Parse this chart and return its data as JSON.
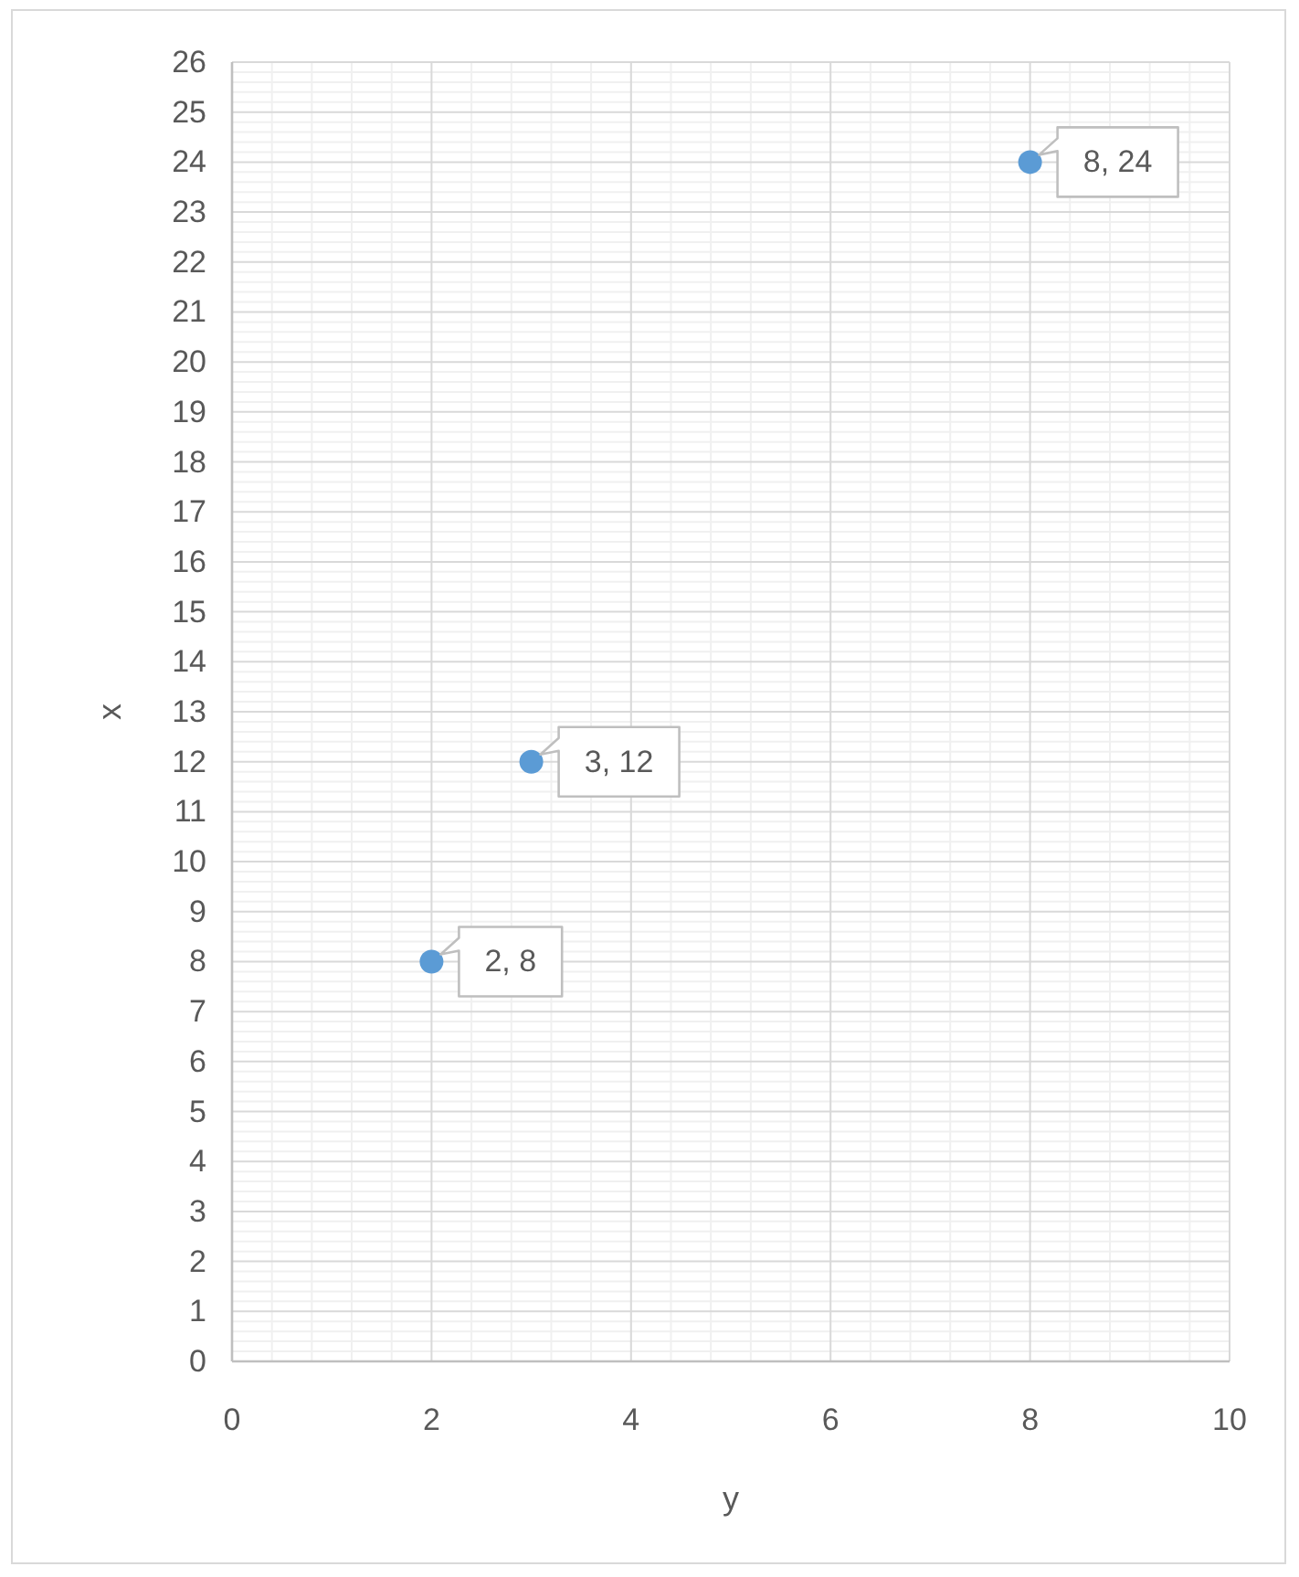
{
  "chart_data": {
    "type": "scatter",
    "xlabel": "y",
    "ylabel": "x",
    "x": [
      2,
      3,
      8
    ],
    "values": [
      8,
      12,
      24
    ],
    "color": "#5b9bd5",
    "marker": "circle",
    "value_labels": [
      "2, 8",
      "3, 12",
      "8, 24"
    ],
    "xlim": [
      0,
      10
    ],
    "ylim": [
      0,
      26
    ],
    "grid": true,
    "xticks": [
      0,
      {
        "value": 0.4,
        "label": null
      },
      {
        "value": 0.8,
        "label": null
      },
      {
        "value": 1.2,
        "label": null
      },
      {
        "value": 1.6,
        "label": null
      },
      2,
      {
        "value": 2.4,
        "label": null
      },
      {
        "value": 2.8,
        "label": null
      },
      {
        "value": 3.2,
        "label": null
      },
      {
        "value": 3.6,
        "label": null
      },
      4,
      {
        "value": 4.4,
        "label": null
      },
      {
        "value": 4.8,
        "label": null
      },
      {
        "value": 5.2,
        "label": null
      },
      {
        "value": 5.6,
        "label": null
      },
      6,
      {
        "value": 6.4,
        "label": null
      },
      {
        "value": 6.8,
        "label": null
      },
      {
        "value": 7.2,
        "label": null
      },
      {
        "value": 7.6,
        "label": null
      },
      8,
      {
        "value": 8.4,
        "label": null
      },
      {
        "value": 8.8,
        "label": null
      },
      {
        "value": 9.2,
        "label": null
      },
      {
        "value": 9.6,
        "label": null
      },
      10
    ],
    "yticks": [
      0,
      {
        "value": 0.2,
        "label": null
      },
      {
        "value": 0.4,
        "label": null
      },
      {
        "value": 0.6,
        "label": null
      },
      {
        "value": 0.8,
        "label": null
      },
      1,
      {
        "value": 1.2,
        "label": null
      },
      {
        "value": 1.4,
        "label": null
      },
      {
        "value": 1.6,
        "label": null
      },
      {
        "value": 1.8,
        "label": null
      },
      2,
      {
        "value": 2.2,
        "label": null
      },
      {
        "value": 2.4,
        "label": null
      },
      {
        "value": 2.6,
        "label": null
      },
      {
        "value": 2.8,
        "label": null
      },
      3,
      {
        "value": 3.2,
        "label": null
      },
      {
        "value": 3.4,
        "label": null
      },
      {
        "value": 3.6,
        "label": null
      },
      {
        "value": 3.8,
        "label": null
      },
      4,
      {
        "value": 4.2,
        "label": null
      },
      {
        "value": 4.4,
        "label": null
      },
      {
        "value": 4.6,
        "label": null
      },
      {
        "value": 4.8,
        "label": null
      },
      5,
      {
        "value": 5.2,
        "label": null
      },
      {
        "value": 5.4,
        "label": null
      },
      {
        "value": 5.6,
        "label": null
      },
      {
        "value": 5.8,
        "label": null
      },
      6,
      {
        "value": 6.2,
        "label": null
      },
      {
        "value": 6.4,
        "label": null
      },
      {
        "value": 6.6,
        "label": null
      },
      {
        "value": 6.8,
        "label": null
      },
      7,
      {
        "value": 7.2,
        "label": null
      },
      {
        "value": 7.4,
        "label": null
      },
      {
        "value": 7.6,
        "label": null
      },
      {
        "value": 7.8,
        "label": null
      },
      8,
      {
        "value": 8.2,
        "label": null
      },
      {
        "value": 8.4,
        "label": null
      },
      {
        "value": 8.6,
        "label": null
      },
      {
        "value": 8.8,
        "label": null
      },
      9,
      {
        "value": 9.2,
        "label": null
      },
      {
        "value": 9.4,
        "label": null
      },
      {
        "value": 9.6,
        "label": null
      },
      {
        "value": 9.8,
        "label": null
      },
      10,
      {
        "value": 10.2,
        "label": null
      },
      {
        "value": 10.4,
        "label": null
      },
      {
        "value": 10.6,
        "label": null
      },
      {
        "value": 10.8,
        "label": null
      },
      11,
      {
        "value": 11.2,
        "label": null
      },
      {
        "value": 11.4,
        "label": null
      },
      {
        "value": 11.6,
        "label": null
      },
      {
        "value": 11.8,
        "label": null
      },
      12,
      {
        "value": 12.2,
        "label": null
      },
      {
        "value": 12.4,
        "label": null
      },
      {
        "value": 12.6,
        "label": null
      },
      {
        "value": 12.8,
        "label": null
      },
      13,
      {
        "value": 13.2,
        "label": null
      },
      {
        "value": 13.4,
        "label": null
      },
      {
        "value": 13.6,
        "label": null
      },
      {
        "value": 13.8,
        "label": null
      },
      14,
      {
        "value": 14.2,
        "label": null
      },
      {
        "value": 14.4,
        "label": null
      },
      {
        "value": 14.6,
        "label": null
      },
      {
        "value": 14.8,
        "label": null
      },
      15,
      {
        "value": 15.2,
        "label": null
      },
      {
        "value": 15.4,
        "label": null
      },
      {
        "value": 15.6,
        "label": null
      },
      {
        "value": 15.8,
        "label": null
      },
      16,
      {
        "value": 16.2,
        "label": null
      },
      {
        "value": 16.4,
        "label": null
      },
      {
        "value": 16.6,
        "label": null
      },
      {
        "value": 16.8,
        "label": null
      },
      17,
      {
        "value": 17.2,
        "label": null
      },
      {
        "value": 17.4,
        "label": null
      },
      {
        "value": 17.6,
        "label": null
      },
      {
        "value": 17.8,
        "label": null
      },
      18,
      {
        "value": 18.2,
        "label": null
      },
      {
        "value": 18.4,
        "label": null
      },
      {
        "value": 18.6,
        "label": null
      },
      {
        "value": 18.8,
        "label": null
      },
      19,
      {
        "value": 19.2,
        "label": null
      },
      {
        "value": 19.4,
        "label": null
      },
      {
        "value": 19.6,
        "label": null
      },
      {
        "value": 19.8,
        "label": null
      },
      20,
      {
        "value": 20.2,
        "label": null
      },
      {
        "value": 20.4,
        "label": null
      },
      {
        "value": 20.6,
        "label": null
      },
      {
        "value": 20.8,
        "label": null
      },
      21,
      {
        "value": 21.2,
        "label": null
      },
      {
        "value": 21.4,
        "label": null
      },
      {
        "value": 21.6,
        "label": null
      },
      {
        "value": 21.8,
        "label": null
      },
      22,
      {
        "value": 22.2,
        "label": null
      },
      {
        "value": 22.4,
        "label": null
      },
      {
        "value": 22.6,
        "label": null
      },
      {
        "value": 22.8,
        "label": null
      },
      23,
      {
        "value": 23.2,
        "label": null
      },
      {
        "value": 23.4,
        "label": null
      },
      {
        "value": 23.6,
        "label": null
      },
      {
        "value": 23.8,
        "label": null
      },
      24,
      {
        "value": 24.2,
        "label": null
      },
      {
        "value": 24.4,
        "label": null
      },
      {
        "value": 24.6,
        "label": null
      },
      {
        "value": 24.8,
        "label": null
      },
      25,
      {
        "value": 25.2,
        "label": null
      },
      {
        "value": 25.4,
        "label": null
      },
      {
        "value": 25.6,
        "label": null
      },
      {
        "value": 25.8,
        "label": null
      },
      26
    ]
  }
}
